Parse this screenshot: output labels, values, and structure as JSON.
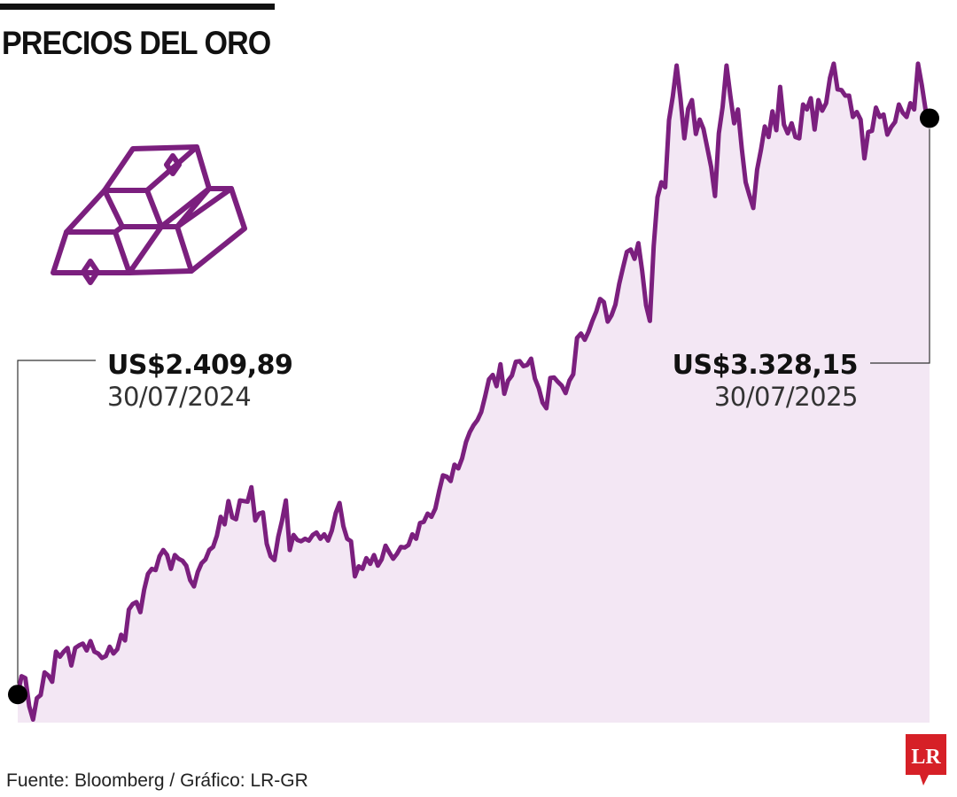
{
  "title": "PRECIOS DEL ORO",
  "source": "Fuente: Bloomberg / Gráfico: LR-GR",
  "logo_text": "LR",
  "icon": "gold-bars-icon",
  "colors": {
    "line": "#7B1F7E",
    "fill": "#F3E7F4",
    "text": "#111111",
    "logo": "#D62027"
  },
  "first_point": {
    "value": "US$2.409,89",
    "date": "30/07/2024"
  },
  "last_point": {
    "value": "US$3.328,15",
    "date": "30/07/2025"
  },
  "chart_data": {
    "type": "area",
    "xlabel": "",
    "ylabel": "",
    "x_range": [
      "30/07/2024",
      "30/07/2025"
    ],
    "ylim": [
      2365,
      3460
    ],
    "grid": false,
    "series": [
      {
        "values": [
          2409.89,
          2439,
          2436,
          2391,
          2370,
          2404,
          2409,
          2445,
          2440,
          2430,
          2478,
          2470,
          2478,
          2484,
          2456,
          2484,
          2488,
          2491,
          2480,
          2495,
          2478,
          2475,
          2468,
          2471,
          2486,
          2475,
          2482,
          2505,
          2496,
          2545,
          2554,
          2557,
          2541,
          2577,
          2602,
          2610,
          2608,
          2630,
          2640,
          2632,
          2610,
          2632,
          2626,
          2623,
          2615,
          2592,
          2582,
          2605,
          2619,
          2625,
          2640,
          2645,
          2663,
          2693,
          2681,
          2718,
          2692,
          2689,
          2719,
          2718,
          2717,
          2740,
          2687,
          2698,
          2700,
          2650,
          2630,
          2624,
          2661,
          2687,
          2719,
          2640,
          2664,
          2656,
          2654,
          2658,
          2655,
          2664,
          2668,
          2658,
          2665,
          2655,
          2671,
          2699,
          2715,
          2678,
          2658,
          2654,
          2598,
          2614,
          2610,
          2627,
          2618,
          2632,
          2615,
          2625,
          2647,
          2636,
          2626,
          2634,
          2645,
          2644,
          2648,
          2665,
          2658,
          2683,
          2685,
          2698,
          2693,
          2706,
          2734,
          2759,
          2757,
          2750,
          2776,
          2770,
          2786,
          2812,
          2828,
          2839,
          2847,
          2860,
          2885,
          2912,
          2919,
          2901,
          2936,
          2889,
          2910,
          2918,
          2940,
          2941,
          2933,
          2935,
          2945,
          2913,
          2898,
          2875,
          2866,
          2914,
          2915,
          2908,
          2902,
          2890,
          2910,
          2920,
          2978,
          2985,
          2975,
          2988,
          3005,
          3020,
          3040,
          3035,
          3004,
          3014,
          3031,
          3064,
          3090,
          3115,
          3119,
          3104,
          3129,
          3085,
          3030,
          3005,
          3124,
          3202,
          3226,
          3218,
          3325,
          3363,
          3412,
          3359,
          3296,
          3343,
          3357,
          3303,
          3326,
          3311,
          3281,
          3250,
          3204,
          3304,
          3346,
          3412,
          3364,
          3320,
          3342,
          3280,
          3226,
          3205,
          3185,
          3246,
          3278,
          3315,
          3298,
          3339,
          3309,
          3378,
          3318,
          3304,
          3320,
          3298,
          3296,
          3350,
          3342,
          3360,
          3310,
          3357,
          3340,
          3352,
          3392,
          3415,
          3374,
          3373,
          3364,
          3364,
          3330,
          3338,
          3326,
          3264,
          3306,
          3308,
          3345,
          3330,
          3334,
          3302,
          3314,
          3322,
          3350,
          3337,
          3330,
          3352,
          3342,
          3415,
          3380,
          3340,
          3328.15
        ]
      }
    ]
  }
}
